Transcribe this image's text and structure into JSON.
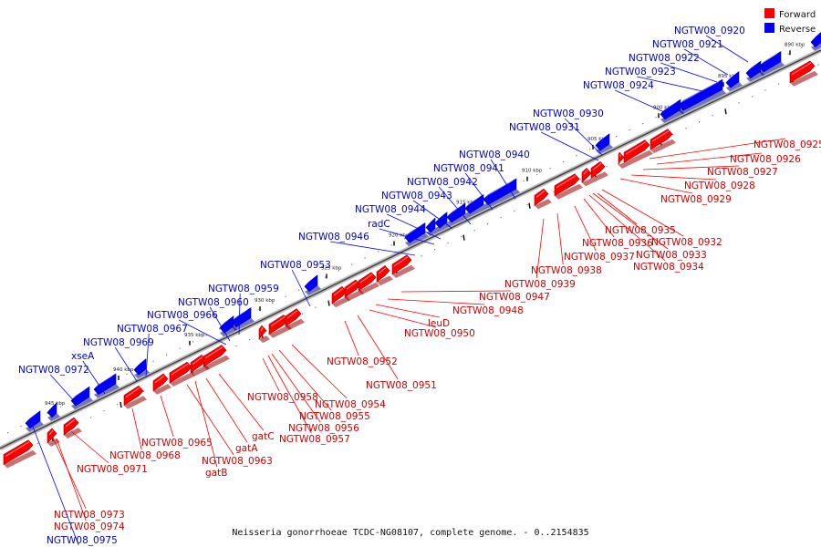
{
  "caption": "Neisseria gonorrhoeae TCDC-NG08107, complete genome. - 0..2154835",
  "legend": [
    {
      "label": "Forward",
      "color": "#ff0000"
    },
    {
      "label": "Reverse",
      "color": "#0000ff"
    }
  ],
  "colors": {
    "forward": "#ff0000",
    "reverse": "#0000ff",
    "forward_label": "#cc0000",
    "reverse_label": "#0000cc"
  },
  "ticks": [
    "945 kbp",
    "940 kbp",
    "935 kbp",
    "930 kbp",
    "925 kbp",
    "920 kbp",
    "915 kbp",
    "910 kbp",
    "905 kbp",
    "900 kbp",
    "895 kbp",
    "890 kbp"
  ],
  "reverse_genes": [
    "NGTW08_0920",
    "NGTW08_0921",
    "NGTW08_0922",
    "NGTW08_0923",
    "NGTW08_0924",
    "NGTW08_0930",
    "NGTW08_0931",
    "NGTW08_0940",
    "NGTW08_0941",
    "NGTW08_0942",
    "NGTW08_0943",
    "NGTW08_0944",
    "radC",
    "NGTW08_0946",
    "NGTW08_0953",
    "NGTW08_0959",
    "NGTW08_0960",
    "NGTW08_0966",
    "NGTW08_0967",
    "NGTW08_0969",
    "xseA",
    "NGTW08_0972",
    "NGTW08_0975"
  ],
  "forward_genes": [
    "NGTW08_0925",
    "NGTW08_0926",
    "NGTW08_0927",
    "NGTW08_0928",
    "NGTW08_0929",
    "NGTW08_0935",
    "NGTW08_0932",
    "NGTW08_0936",
    "NGTW08_0933",
    "NGTW08_0937",
    "NGTW08_0934",
    "NGTW08_0938",
    "NGTW08_0939",
    "NGTW08_0947",
    "NGTW08_0948",
    "leuD",
    "NGTW08_0950",
    "NGTW08_0952",
    "NGTW08_0951",
    "NGTW08_0954",
    "NGTW08_0955",
    "NGTW08_0956",
    "NGTW08_0957",
    "NGTW08_0958",
    "gatC",
    "gatA",
    "NGTW08_0963",
    "gatB",
    "NGTW08_0965",
    "NGTW08_0968",
    "NGTW08_0971",
    "NGTW08_0973",
    "NGTW08_0974"
  ]
}
